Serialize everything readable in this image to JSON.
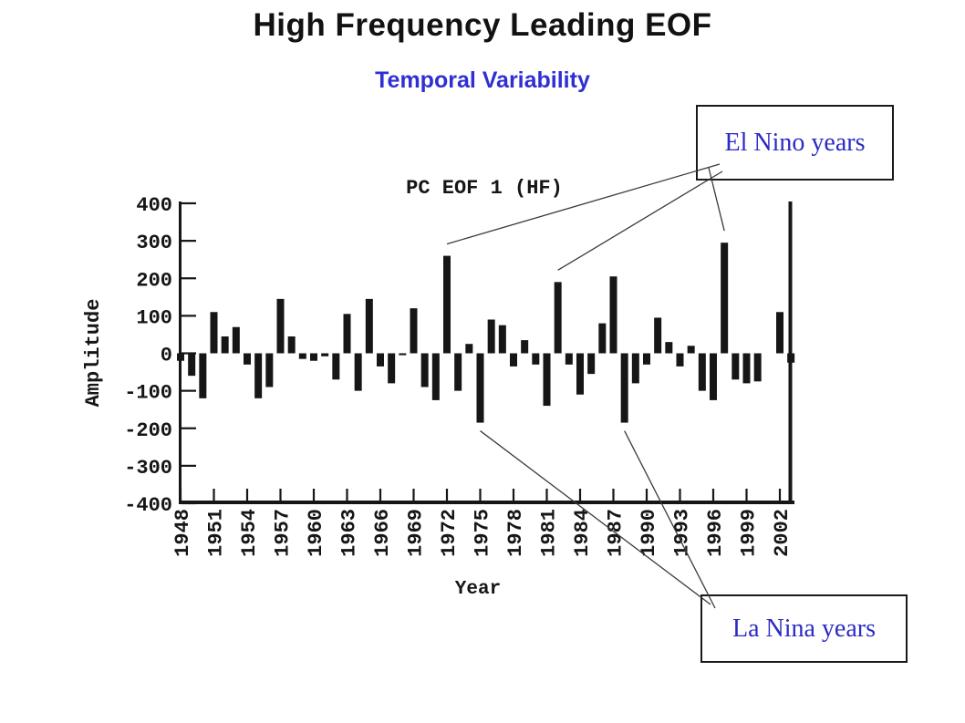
{
  "page": {
    "background": "#ffffff"
  },
  "header": {
    "title": "High Frequency Leading EOF",
    "title_color": "#121212",
    "subtitle": "Temporal Variability",
    "subtitle_color": "#2f2fd3"
  },
  "annotations": {
    "el_nino": {
      "label": "El Nino years",
      "color": "#2b2bc4"
    },
    "la_nina": {
      "label": "La Nina years",
      "color": "#2b2bc4"
    },
    "line_color": "#3a3a3a"
  },
  "chart_data": {
    "type": "bar",
    "title": "PC EOF 1 (HF)",
    "xlabel": "Year",
    "ylabel": "Amplitude",
    "ylim": [
      -400,
      400
    ],
    "grid": false,
    "ink_color": "#161616",
    "bar_color": "#161616",
    "y_ticks": [
      400,
      300,
      200,
      100,
      0,
      -100,
      -200,
      -300,
      -400
    ],
    "y_tick_labels": [
      "400",
      "300",
      "200",
      "100",
      "0",
      "-100",
      "-200",
      "-300",
      "-400"
    ],
    "x_ticks": [
      1948,
      1951,
      1954,
      1957,
      1960,
      1963,
      1966,
      1969,
      1972,
      1975,
      1978,
      1981,
      1984,
      1987,
      1990,
      1993,
      1996,
      1999,
      2002
    ],
    "x": [
      1948,
      1949,
      1950,
      1951,
      1952,
      1953,
      1954,
      1955,
      1956,
      1957,
      1958,
      1959,
      1960,
      1961,
      1962,
      1963,
      1964,
      1965,
      1966,
      1967,
      1968,
      1969,
      1970,
      1971,
      1972,
      1973,
      1974,
      1975,
      1976,
      1977,
      1978,
      1979,
      1980,
      1981,
      1982,
      1983,
      1984,
      1985,
      1986,
      1987,
      1988,
      1989,
      1990,
      1991,
      1992,
      1993,
      1994,
      1995,
      1996,
      1997,
      1998,
      1999,
      2000,
      2001,
      2002,
      2003
    ],
    "values": [
      -20,
      -60,
      -120,
      110,
      45,
      70,
      -30,
      -120,
      -90,
      145,
      45,
      -15,
      -20,
      -8,
      -70,
      105,
      -100,
      145,
      -35,
      -80,
      -5,
      120,
      -90,
      -125,
      260,
      -100,
      25,
      -185,
      90,
      75,
      -35,
      35,
      -30,
      -140,
      190,
      -30,
      -110,
      -55,
      80,
      205,
      -185,
      -80,
      -30,
      95,
      30,
      -35,
      20,
      -100,
      -125,
      295,
      -70,
      -80,
      -75,
      0,
      110,
      -25
    ],
    "el_nino_years": [
      1972,
      1982,
      1997
    ],
    "la_nina_years": [
      1975,
      1988
    ]
  }
}
